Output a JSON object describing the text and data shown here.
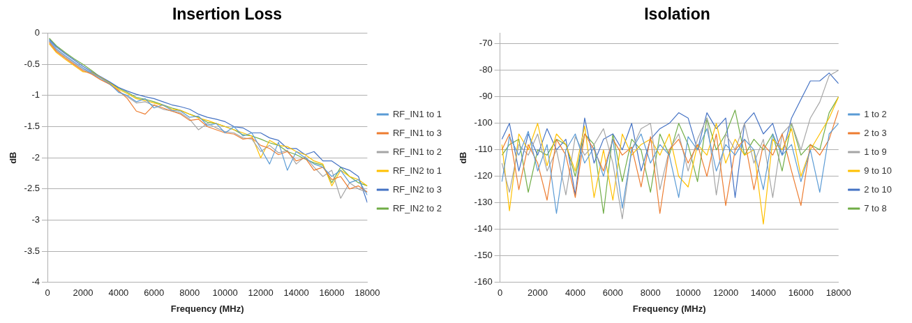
{
  "chart_data": [
    {
      "type": "line",
      "title": "Insertion Loss",
      "xlabel": "Frequency (MHz)",
      "ylabel": "dB",
      "xlim": [
        0,
        18000
      ],
      "xticks": [
        0,
        2000,
        4000,
        6000,
        8000,
        10000,
        12000,
        14000,
        16000,
        18000
      ],
      "ylim": [
        -4,
        0
      ],
      "yticks": [
        -4,
        -3.5,
        -3,
        -2.5,
        -2,
        -1.5,
        -1,
        -0.5,
        0
      ],
      "grid": "y",
      "legend": "right",
      "x": [
        100,
        500,
        1000,
        1500,
        2000,
        2500,
        3000,
        3500,
        4000,
        4500,
        5000,
        5500,
        6000,
        6500,
        7000,
        7500,
        8000,
        8500,
        9000,
        9500,
        10000,
        10500,
        11000,
        11500,
        12000,
        12500,
        13000,
        13500,
        14000,
        14500,
        15000,
        15500,
        16000,
        16500,
        17000,
        17500,
        18000
      ],
      "series": [
        {
          "name": "RF_IN1 to 1",
          "color": "#5b9bd5",
          "values": [
            -0.12,
            -0.25,
            -0.36,
            -0.46,
            -0.56,
            -0.64,
            -0.72,
            -0.81,
            -0.95,
            -1.0,
            -1.1,
            -1.05,
            -1.2,
            -1.15,
            -1.24,
            -1.25,
            -1.35,
            -1.33,
            -1.48,
            -1.45,
            -1.6,
            -1.5,
            -1.65,
            -1.6,
            -1.85,
            -2.1,
            -1.75,
            -2.2,
            -1.9,
            -2.0,
            -2.1,
            -2.15,
            -2.3,
            -2.2,
            -2.4,
            -2.35,
            -2.6
          ]
        },
        {
          "name": "RF_IN1 to 3",
          "color": "#ed7d31",
          "values": [
            -0.15,
            -0.29,
            -0.4,
            -0.5,
            -0.6,
            -0.66,
            -0.75,
            -0.82,
            -0.92,
            -1.05,
            -1.25,
            -1.3,
            -1.15,
            -1.2,
            -1.25,
            -1.3,
            -1.4,
            -1.38,
            -1.5,
            -1.55,
            -1.6,
            -1.62,
            -1.7,
            -1.68,
            -1.8,
            -1.85,
            -1.95,
            -1.9,
            -2.05,
            -2.0,
            -2.2,
            -2.15,
            -2.35,
            -2.3,
            -2.5,
            -2.45,
            -2.55
          ]
        },
        {
          "name": "RF_IN1 to 2",
          "color": "#a5a5a5",
          "values": [
            -0.13,
            -0.27,
            -0.38,
            -0.48,
            -0.58,
            -0.65,
            -0.74,
            -0.82,
            -0.93,
            -1.02,
            -1.12,
            -1.1,
            -1.16,
            -1.22,
            -1.25,
            -1.28,
            -1.38,
            -1.55,
            -1.45,
            -1.52,
            -1.58,
            -1.6,
            -1.68,
            -1.7,
            -1.9,
            -1.8,
            -1.92,
            -1.88,
            -2.1,
            -1.98,
            -2.15,
            -2.3,
            -2.2,
            -2.65,
            -2.4,
            -2.5,
            -2.55
          ]
        },
        {
          "name": "RF_IN2 to 1",
          "color": "#ffc000",
          "values": [
            -0.17,
            -0.31,
            -0.42,
            -0.52,
            -0.62,
            -0.63,
            -0.71,
            -0.8,
            -0.9,
            -0.97,
            -1.05,
            -1.08,
            -1.12,
            -1.16,
            -1.22,
            -1.24,
            -1.3,
            -1.36,
            -1.4,
            -1.45,
            -1.5,
            -1.55,
            -1.6,
            -1.65,
            -2.0,
            -1.72,
            -1.8,
            -1.82,
            -1.9,
            -1.95,
            -2.05,
            -2.1,
            -2.45,
            -2.2,
            -2.3,
            -2.35,
            -2.45
          ]
        },
        {
          "name": "RF_IN2 to 3",
          "color": "#4472c4",
          "values": [
            -0.1,
            -0.22,
            -0.33,
            -0.43,
            -0.53,
            -0.62,
            -0.7,
            -0.78,
            -0.87,
            -0.93,
            -0.98,
            -1.02,
            -1.05,
            -1.1,
            -1.15,
            -1.18,
            -1.22,
            -1.3,
            -1.35,
            -1.38,
            -1.42,
            -1.5,
            -1.52,
            -1.6,
            -1.6,
            -1.68,
            -1.72,
            -1.85,
            -1.85,
            -1.95,
            -1.9,
            -2.05,
            -2.05,
            -2.15,
            -2.2,
            -2.3,
            -2.72
          ]
        },
        {
          "name": "RF_IN2 to 2",
          "color": "#70ad47",
          "values": [
            -0.08,
            -0.2,
            -0.31,
            -0.41,
            -0.5,
            -0.6,
            -0.71,
            -0.79,
            -0.88,
            -0.95,
            -1.03,
            -1.06,
            -1.1,
            -1.15,
            -1.2,
            -1.24,
            -1.3,
            -1.35,
            -1.43,
            -1.45,
            -1.5,
            -1.55,
            -1.63,
            -1.65,
            -1.7,
            -1.76,
            -1.8,
            -1.9,
            -1.95,
            -2.02,
            -2.08,
            -2.12,
            -2.4,
            -2.15,
            -2.3,
            -2.4,
            -2.45
          ]
        }
      ]
    },
    {
      "type": "line",
      "title": "Isolation",
      "xlabel": "Frequency (MHz)",
      "ylabel": "dB",
      "xlim": [
        0,
        18000
      ],
      "xticks": [
        0,
        2000,
        4000,
        6000,
        8000,
        10000,
        12000,
        14000,
        16000,
        18000
      ],
      "ylim": [
        -160,
        -66
      ],
      "yticks": [
        -160,
        -150,
        -140,
        -130,
        -120,
        -110,
        -100,
        -90,
        -80,
        -70
      ],
      "grid": "y",
      "legend": "right",
      "x": [
        100,
        500,
        1000,
        1500,
        2000,
        2500,
        3000,
        3500,
        4000,
        4500,
        5000,
        5500,
        6000,
        6500,
        7000,
        7500,
        8000,
        8500,
        9000,
        9500,
        10000,
        10500,
        11000,
        11500,
        12000,
        12500,
        13000,
        13500,
        14000,
        14500,
        15000,
        15500,
        16000,
        16500,
        17000,
        17500,
        18000
      ],
      "series": [
        {
          "name": "1 to 2",
          "color": "#5b9bd5",
          "values": [
            -122,
            -105,
            -112,
            -103,
            -118,
            -108,
            -134,
            -110,
            -104,
            -115,
            -109,
            -120,
            -106,
            -132,
            -110,
            -104,
            -115,
            -108,
            -112,
            -128,
            -105,
            -110,
            -102,
            -118,
            -108,
            -112,
            -106,
            -110,
            -125,
            -104,
            -112,
            -108,
            -122,
            -110,
            -126,
            -104,
            -100
          ]
        },
        {
          "name": "2 to 3",
          "color": "#ed7d31",
          "values": [
            -110,
            -104,
            -125,
            -108,
            -115,
            -129,
            -106,
            -112,
            -128,
            -104,
            -110,
            -118,
            -106,
            -112,
            -109,
            -124,
            -105,
            -134,
            -110,
            -106,
            -115,
            -108,
            -120,
            -104,
            -131,
            -110,
            -106,
            -125,
            -108,
            -112,
            -104,
            -118,
            -131,
            -108,
            -112,
            -106,
            -95
          ]
        },
        {
          "name": "1 to 9",
          "color": "#a5a5a5",
          "values": [
            -115,
            -126,
            -108,
            -112,
            -104,
            -118,
            -110,
            -127,
            -105,
            -112,
            -108,
            -102,
            -115,
            -136,
            -110,
            -102,
            -100,
            -125,
            -110,
            -104,
            -118,
            -106,
            -98,
            -127,
            -104,
            -110,
            -100,
            -115,
            -106,
            -128,
            -104,
            -100,
            -110,
            -98,
            -92,
            -82,
            -80
          ]
        },
        {
          "name": "9 to 10",
          "color": "#ffc000",
          "values": [
            -108,
            -133,
            -104,
            -110,
            -100,
            -116,
            -104,
            -108,
            -118,
            -101,
            -128,
            -110,
            -129,
            -104,
            -112,
            -108,
            -106,
            -112,
            -104,
            -120,
            -124,
            -108,
            -112,
            -100,
            -115,
            -106,
            -112,
            -110,
            -138,
            -106,
            -110,
            -102,
            -120,
            -110,
            -104,
            -98,
            -90
          ]
        },
        {
          "name": "2 to 10",
          "color": "#4472c4",
          "values": [
            -106,
            -100,
            -118,
            -104,
            -112,
            -102,
            -110,
            -106,
            -127,
            -98,
            -115,
            -106,
            -104,
            -110,
            -100,
            -118,
            -106,
            -102,
            -100,
            -96,
            -98,
            -110,
            -96,
            -102,
            -98,
            -128,
            -100,
            -96,
            -104,
            -100,
            -112,
            -98,
            -91,
            -84,
            -84,
            -81,
            -85
          ]
        },
        {
          "name": "7 to 8",
          "color": "#70ad47",
          "values": [
            -112,
            -108,
            -106,
            -126,
            -110,
            -112,
            -106,
            -108,
            -120,
            -104,
            -108,
            -134,
            -104,
            -122,
            -106,
            -110,
            -126,
            -104,
            -112,
            -100,
            -108,
            -122,
            -98,
            -110,
            -104,
            -95,
            -112,
            -106,
            -110,
            -104,
            -118,
            -100,
            -112,
            -108,
            -110,
            -96,
            -90
          ]
        }
      ]
    }
  ]
}
